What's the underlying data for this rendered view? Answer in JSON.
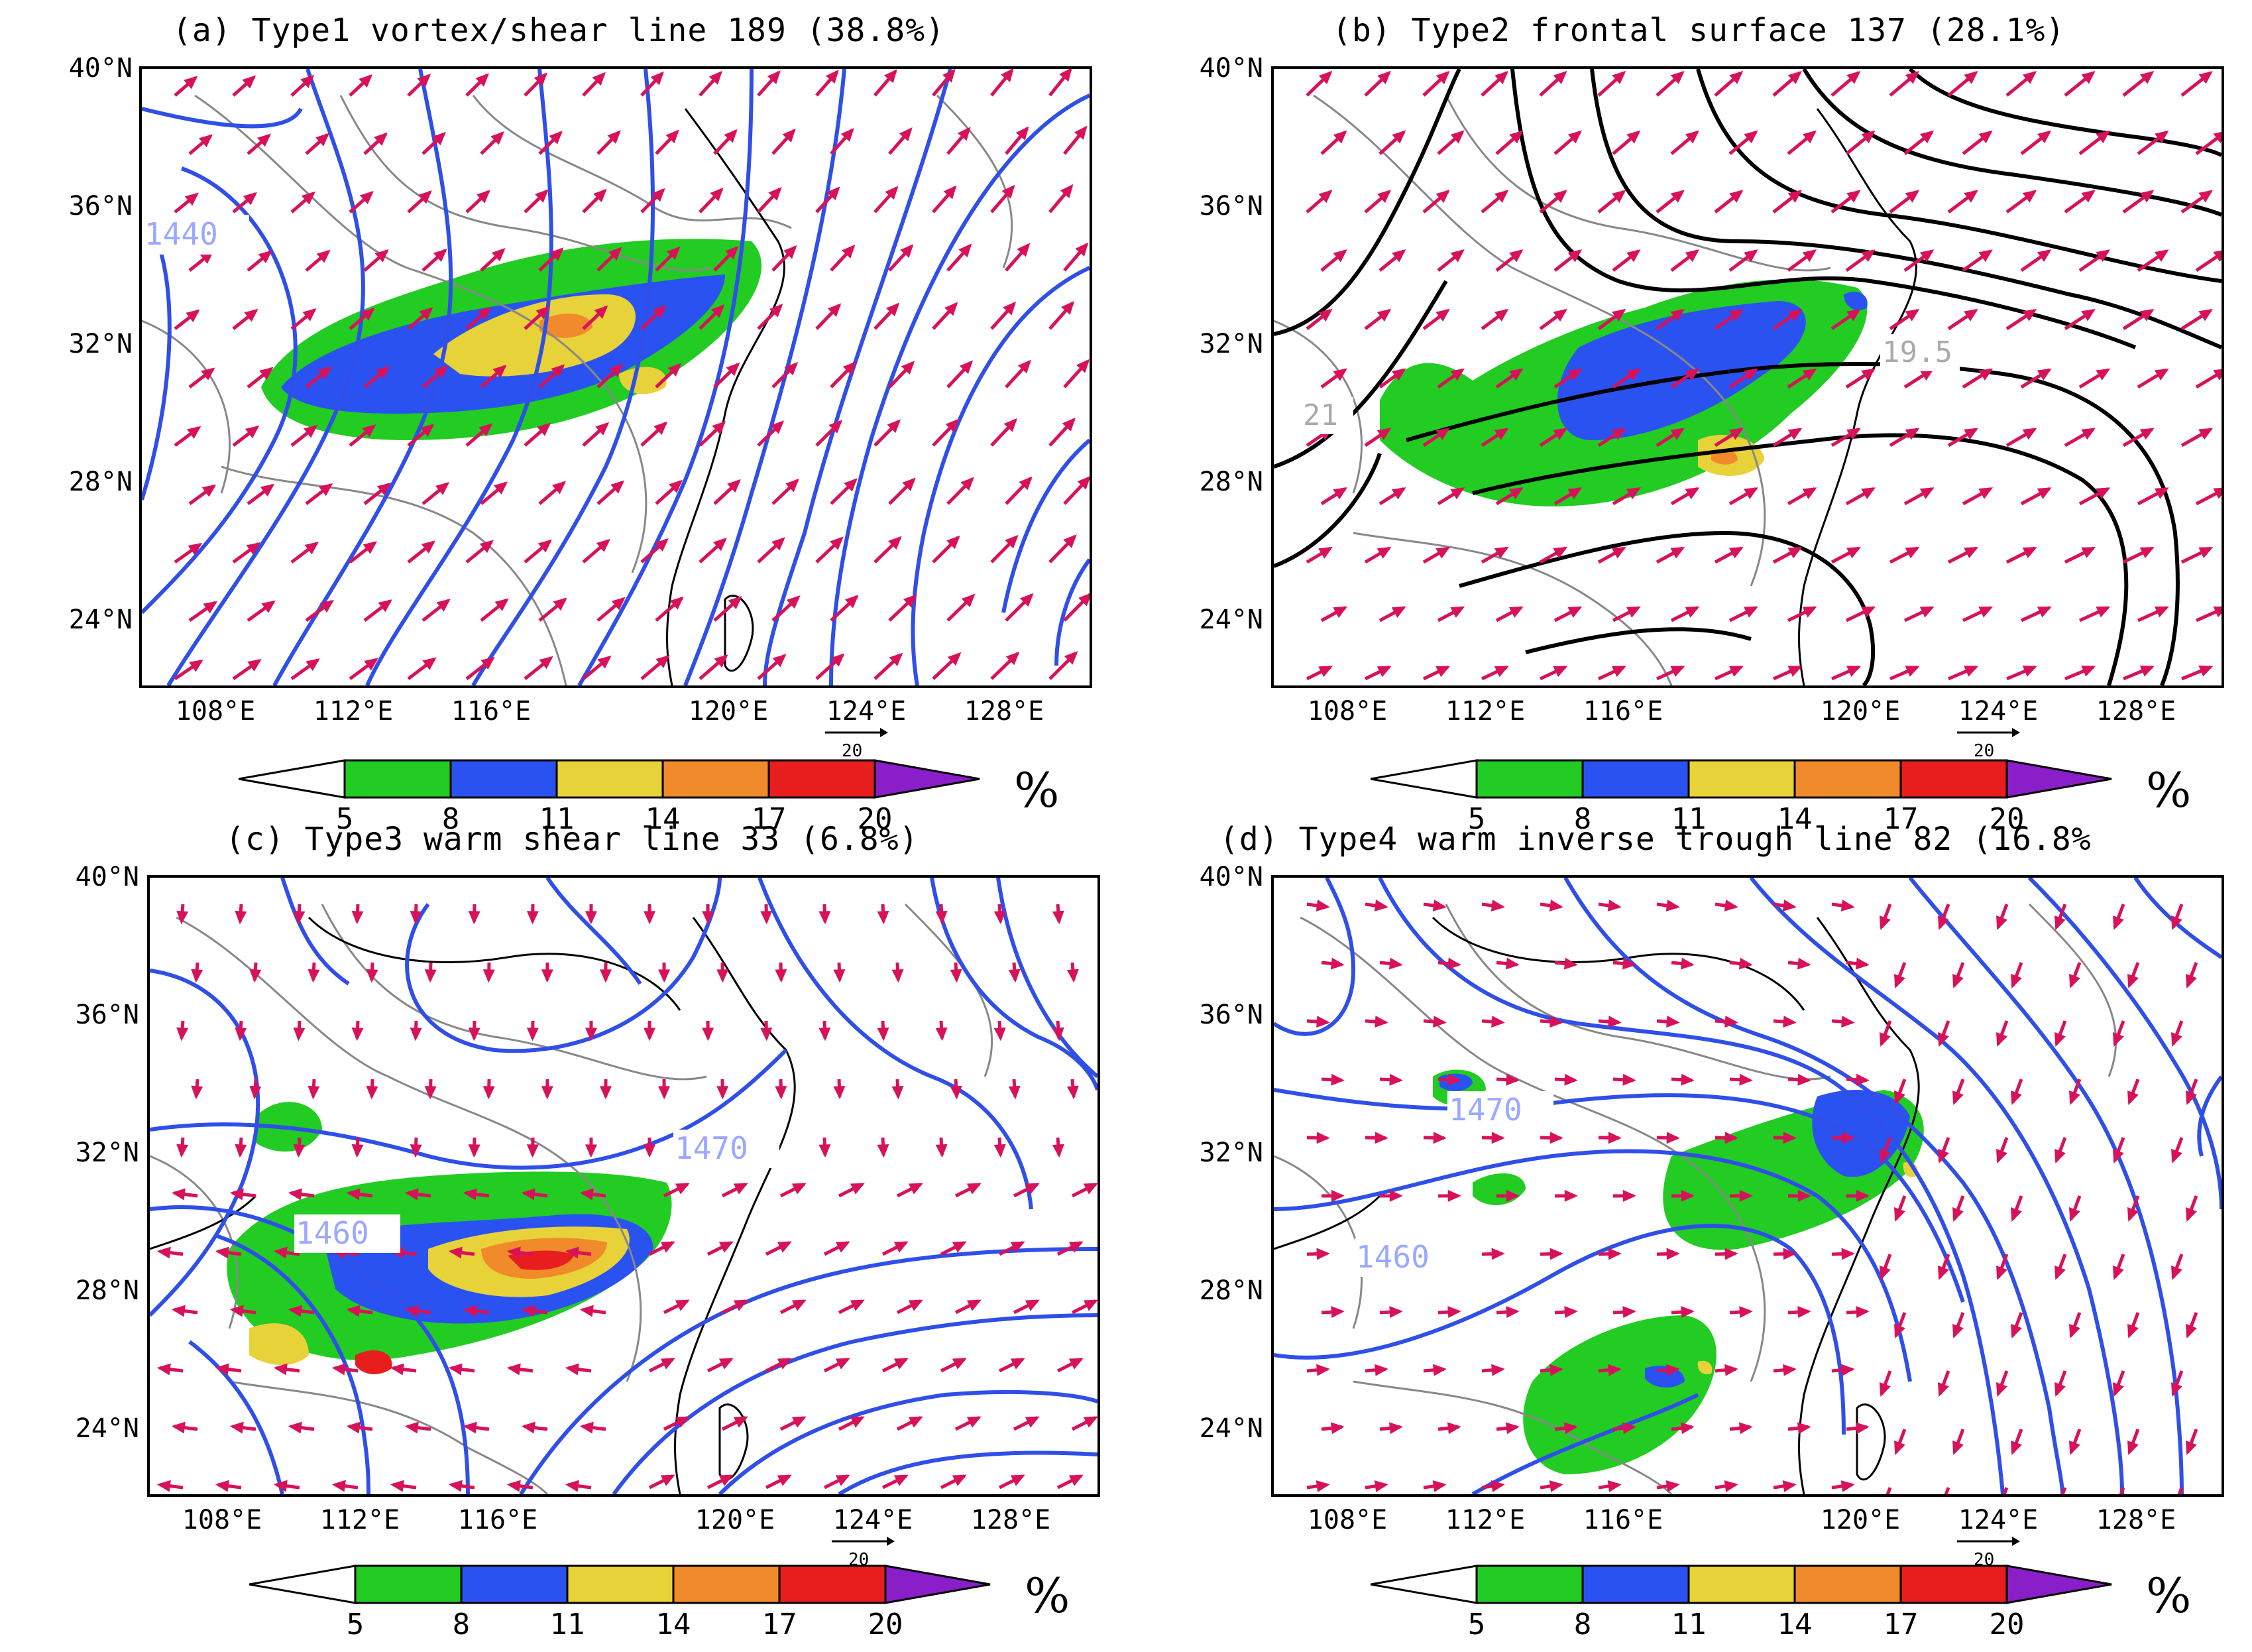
{
  "panels": [
    {
      "id": "a",
      "title": "(a) Type1 vortex/shear line 189 (38.8%)",
      "contour_label_1": "1440",
      "contour_label_2": ""
    },
    {
      "id": "b",
      "title": "(b) Type2 frontal surface 137 (28.1%)",
      "contour_label_1": "19.5",
      "contour_label_2": "21"
    },
    {
      "id": "c",
      "title": "(c) Type3 warm shear line 33 (6.8%)",
      "contour_label_1": "1470",
      "contour_label_2": "1460"
    },
    {
      "id": "d",
      "title": "(d) Type4 warm inverse trough line 82 (16.8%",
      "contour_label_1": "1470",
      "contour_label_2": "1460"
    }
  ],
  "lat_labels": [
    "40°N",
    "36°N",
    "32°N",
    "28°N",
    "24°N"
  ],
  "lon_labels": [
    "108°E",
    "112°E",
    "116°E",
    "120°E",
    "124°E",
    "128°E"
  ],
  "colorbar": {
    "labels": [
      "5",
      "8",
      "11",
      "14",
      "17",
      "20"
    ],
    "colors": [
      "#22cc22",
      "#2a52f0",
      "#e8d23a",
      "#f08a2a",
      "#e81e1e",
      "#8a1ec8"
    ],
    "unit": "%",
    "reference_vector": "20"
  },
  "colors": {
    "streamline": "#2f4fe8",
    "theta_contour": "#000000",
    "wind_vector": "#d8125a",
    "border": "#888888",
    "coast": "#000000"
  }
}
